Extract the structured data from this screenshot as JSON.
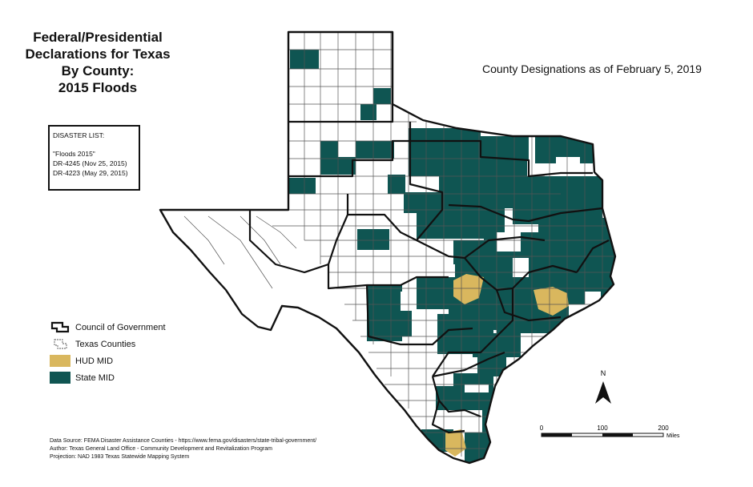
{
  "title": {
    "line1": "Federal/Presidential",
    "line2": "Declarations for Texas",
    "line3": "By County:",
    "line4": "2015 Floods"
  },
  "designation_date": "County Designations as of February 5, 2019",
  "disaster_list": {
    "heading": "DISASTER LIST:",
    "event": "\"Floods 2015\"",
    "items": [
      "DR-4245 (Nov 25, 2015)",
      "DR-4223 (May 29, 2015)"
    ]
  },
  "legend": {
    "cog": "Council of Government",
    "counties": "Texas Counties",
    "hud_mid": "HUD MID",
    "state_mid": "State MID"
  },
  "colors": {
    "state_mid": "#0f5552",
    "hud_mid": "#d9b75e",
    "county_line": "#555555",
    "cog_line": "#111111"
  },
  "scale_bar": {
    "ticks": [
      "0",
      "100",
      "200"
    ],
    "unit": "Miles"
  },
  "north_label": "N",
  "sources": {
    "line1": "Data Source: FEMA Disaster Assistance Counties - https://www.fema.gov/disasters/state-tribal-government/",
    "line2": "Author: Texas General Land Office - Community Development and Revitalization Program",
    "line3": "Projection: NAD 1983 Texas Statewide Mapping System"
  }
}
